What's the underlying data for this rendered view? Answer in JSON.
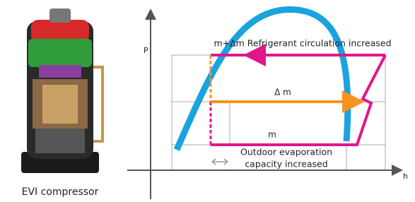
{
  "compressor_label": "EVI compressor",
  "diagram": {
    "y_axis_label": "P",
    "x_axis_label": "h",
    "labels": {
      "top": "m+Δm Refrigerant circulation increased",
      "middle": "Δ m",
      "bottom": "m",
      "note": [
        "Outdoor evaporation",
        "capacity increased"
      ]
    }
  }
}
